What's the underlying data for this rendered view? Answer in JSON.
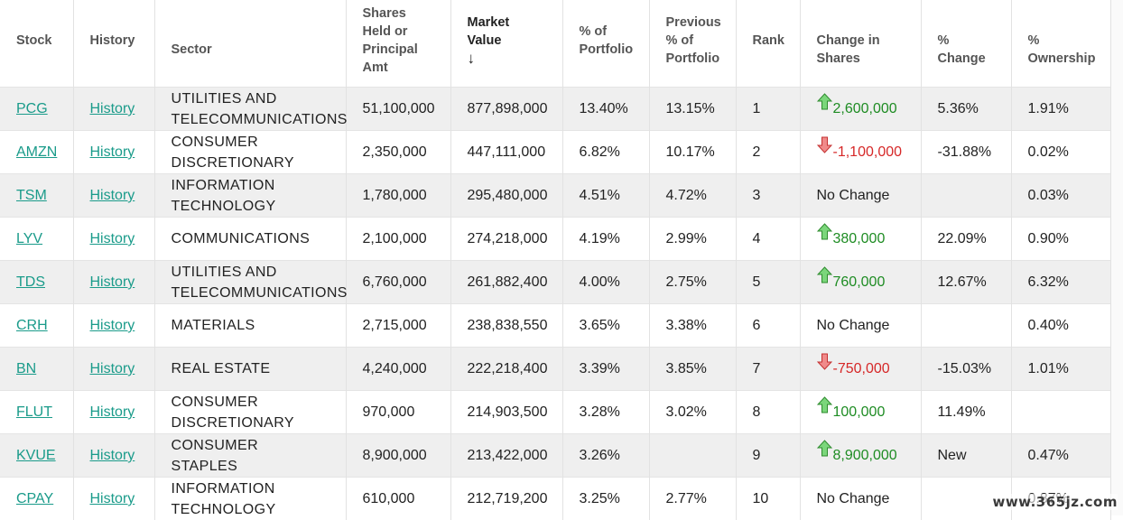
{
  "colors": {
    "link": "#1a9b8a",
    "up": "#1e8c23",
    "down": "#d62828",
    "row_alt": "#efefef"
  },
  "headers": {
    "stock": "Stock",
    "history": "History",
    "sector": "Sector",
    "shares_l1": "Shares",
    "shares_l2": "Held or",
    "shares_l3": "Principal",
    "shares_l4": "Amt",
    "market_value": "Market Value",
    "sort_arrow": "↓",
    "pct_l1": "% of",
    "pct_l2": "Portfolio",
    "prev_l1": "Previous",
    "prev_l2": "% of",
    "prev_l3": "Portfolio",
    "rank": "Rank",
    "chg_l1": "Change in",
    "chg_l2": "Shares",
    "pchg_l1": "%",
    "pchg_l2": "Change",
    "own_l1": "%",
    "own_l2": "Ownership"
  },
  "rows": [
    {
      "stock": "PCG",
      "history": "History",
      "sector": "UTILITIES AND TELECOMMUNICATIONS",
      "shares": "51,100,000",
      "market_value": "877,898,000",
      "pct": "13.40%",
      "prev_pct": "13.15%",
      "rank": "1",
      "change": "2,600,000",
      "dir": "up",
      "pct_change": "5.36%",
      "ownership": "1.91%"
    },
    {
      "stock": "AMZN",
      "history": "History",
      "sector": "CONSUMER DISCRETIONARY",
      "shares": "2,350,000",
      "market_value": "447,111,000",
      "pct": "6.82%",
      "prev_pct": "10.17%",
      "rank": "2",
      "change": "-1,100,000",
      "dir": "down",
      "pct_change": "-31.88%",
      "ownership": "0.02%"
    },
    {
      "stock": "TSM",
      "history": "History",
      "sector": "INFORMATION TECHNOLOGY",
      "shares": "1,780,000",
      "market_value": "295,480,000",
      "pct": "4.51%",
      "prev_pct": "4.72%",
      "rank": "3",
      "change": "No Change",
      "dir": "none",
      "pct_change": "",
      "ownership": "0.03%"
    },
    {
      "stock": "LYV",
      "history": "History",
      "sector": "COMMUNICATIONS",
      "shares": "2,100,000",
      "market_value": "274,218,000",
      "pct": "4.19%",
      "prev_pct": "2.99%",
      "rank": "4",
      "change": "380,000",
      "dir": "up",
      "pct_change": "22.09%",
      "ownership": "0.90%"
    },
    {
      "stock": "TDS",
      "history": "History",
      "sector": "UTILITIES AND TELECOMMUNICATIONS",
      "shares": "6,760,000",
      "market_value": "261,882,400",
      "pct": "4.00%",
      "prev_pct": "2.75%",
      "rank": "5",
      "change": "760,000",
      "dir": "up",
      "pct_change": "12.67%",
      "ownership": "6.32%"
    },
    {
      "stock": "CRH",
      "history": "History",
      "sector": "MATERIALS",
      "shares": "2,715,000",
      "market_value": "238,838,550",
      "pct": "3.65%",
      "prev_pct": "3.38%",
      "rank": "6",
      "change": "No Change",
      "dir": "none",
      "pct_change": "",
      "ownership": "0.40%"
    },
    {
      "stock": "BN",
      "history": "History",
      "sector": "REAL ESTATE",
      "shares": "4,240,000",
      "market_value": "222,218,400",
      "pct": "3.39%",
      "prev_pct": "3.85%",
      "rank": "7",
      "change": "-750,000",
      "dir": "down",
      "pct_change": "-15.03%",
      "ownership": "1.01%"
    },
    {
      "stock": "FLUT",
      "history": "History",
      "sector": "CONSUMER DISCRETIONARY",
      "shares": "970,000",
      "market_value": "214,903,500",
      "pct": "3.28%",
      "prev_pct": "3.02%",
      "rank": "8",
      "change": "100,000",
      "dir": "up",
      "pct_change": "11.49%",
      "ownership": ""
    },
    {
      "stock": "KVUE",
      "history": "History",
      "sector": "CONSUMER STAPLES",
      "shares": "8,900,000",
      "market_value": "213,422,000",
      "pct": "3.26%",
      "prev_pct": "",
      "rank": "9",
      "change": "8,900,000",
      "dir": "up",
      "pct_change": "New",
      "ownership": "0.47%"
    },
    {
      "stock": "CPAY",
      "history": "History",
      "sector": "INFORMATION TECHNOLOGY",
      "shares": "610,000",
      "market_value": "212,719,200",
      "pct": "3.25%",
      "prev_pct": "2.77%",
      "rank": "10",
      "change": "No Change",
      "dir": "none",
      "pct_change": "",
      "ownership": "0.87%"
    }
  ],
  "watermark": "www.365jz.com"
}
